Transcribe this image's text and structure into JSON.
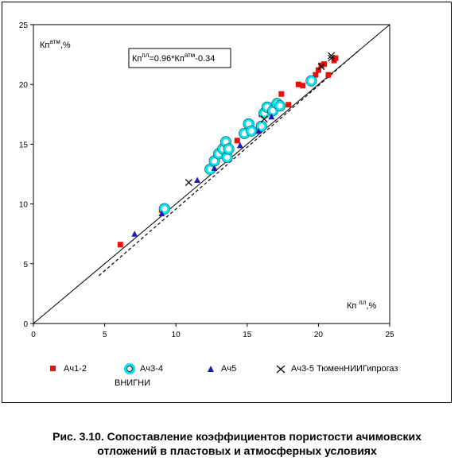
{
  "chart_data": {
    "type": "scatter",
    "xlim": [
      0,
      25
    ],
    "ylim": [
      0,
      25
    ],
    "x_ticks": [
      "0",
      "5",
      "10",
      "15",
      "20",
      "25"
    ],
    "y_ticks": [
      "0",
      "5",
      "10",
      "15",
      "20",
      "25"
    ],
    "ylabel": {
      "base": "Кп",
      "sup": "атм",
      "tail": ",%"
    },
    "xlabel": {
      "base": "Кп ",
      "sup": "пл",
      "tail": ",%"
    },
    "equation": {
      "p1": "Кп",
      "s1": "пл",
      "p2": "=0.96*Кп",
      "s2": "атм",
      "p3": "-0.34"
    },
    "grid": false,
    "reference_line": {
      "name": "1:1",
      "points": [
        [
          0,
          0
        ],
        [
          25,
          25
        ]
      ],
      "color": "#000000"
    },
    "trend_line": {
      "points": [
        [
          4.6,
          4.0
        ],
        [
          22.8,
          22.8
        ]
      ],
      "color": "#000000",
      "style": "dashed"
    },
    "series": [
      {
        "name": "Ач1-2",
        "marker": "square",
        "color": "#e8120c",
        "points": [
          [
            6.1,
            6.6
          ],
          [
            9.0,
            9.5
          ],
          [
            14.3,
            15.3
          ],
          [
            16.0,
            17.5
          ],
          [
            17.4,
            19.2
          ],
          [
            17.9,
            18.3
          ],
          [
            18.6,
            20.0
          ],
          [
            18.9,
            19.9
          ],
          [
            19.8,
            20.8
          ],
          [
            20.0,
            21.2
          ],
          [
            20.2,
            21.6
          ],
          [
            20.4,
            21.7
          ],
          [
            20.7,
            20.8
          ],
          [
            21.1,
            22.0
          ],
          [
            21.2,
            22.2
          ]
        ]
      },
      {
        "name": "Ач3-4",
        "marker": "ring",
        "color": "#00e5f0",
        "points": [
          [
            9.2,
            9.6
          ],
          [
            12.4,
            12.9
          ],
          [
            12.7,
            13.6
          ],
          [
            13.0,
            14.2
          ],
          [
            13.3,
            14.6
          ],
          [
            13.5,
            15.2
          ],
          [
            13.6,
            13.9
          ],
          [
            13.7,
            14.6
          ],
          [
            14.8,
            15.9
          ],
          [
            15.1,
            16.7
          ],
          [
            15.3,
            16.1
          ],
          [
            16.0,
            16.5
          ],
          [
            16.2,
            17.6
          ],
          [
            16.4,
            18.1
          ],
          [
            16.8,
            17.8
          ],
          [
            17.1,
            18.4
          ],
          [
            17.3,
            18.2
          ],
          [
            19.5,
            20.3
          ]
        ]
      },
      {
        "name": "Ач5",
        "marker": "triangle",
        "color": "#1a1ab5",
        "points": [
          [
            7.1,
            7.5
          ],
          [
            9.0,
            9.2
          ],
          [
            11.5,
            12.0
          ],
          [
            12.7,
            13.0
          ],
          [
            14.5,
            14.9
          ],
          [
            15.8,
            16.1
          ],
          [
            16.7,
            17.3
          ]
        ]
      },
      {
        "name": "Ач3-5 ТюменНИИГипрогаз",
        "marker": "x",
        "color": "#000000",
        "points": [
          [
            10.9,
            11.8
          ],
          [
            16.2,
            17.1
          ],
          [
            20.2,
            21.5
          ],
          [
            20.9,
            22.2
          ],
          [
            20.9,
            22.4
          ]
        ]
      }
    ],
    "legend_extra": "ВНИГНИ"
  },
  "caption": {
    "line1": "Рис. 3.10. Сопоставление коэффициентов пористости ачимовских",
    "line2": "отложений в пластовых и  атмосферных условиях"
  }
}
